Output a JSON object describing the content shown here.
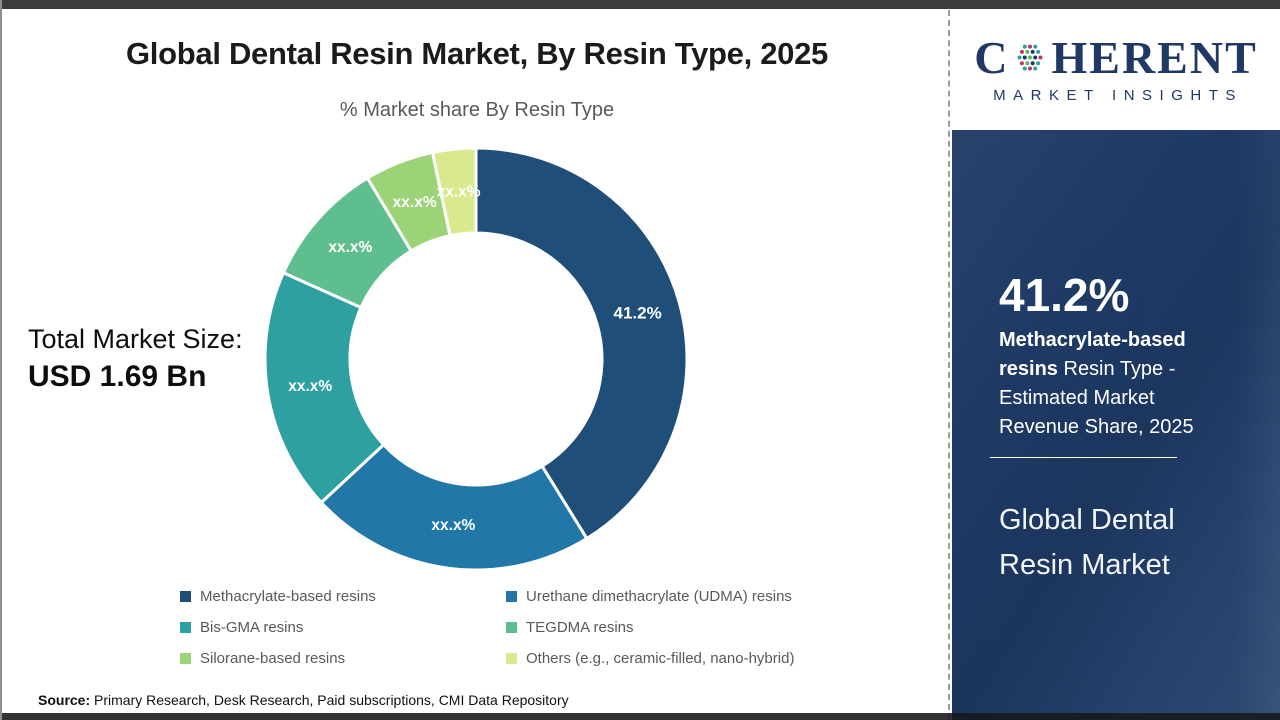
{
  "header": {
    "title": "Global Dental Resin Market, By Resin Type, 2025",
    "subtitle": "% Market share By Resin Type"
  },
  "total": {
    "label": "Total Market Size:",
    "value": "USD 1.69 Bn"
  },
  "chart_data": {
    "type": "pie",
    "variant": "donut",
    "title": "Global Dental Resin Market, By Resin Type, 2025",
    "subtitle": "% Market share By Resin Type",
    "legend_position": "bottom",
    "start_angle_deg": 0,
    "direction": "clockwise",
    "segments": [
      {
        "label": "Methacrylate-based resins",
        "display": "41.2%",
        "value": 41.2,
        "color": "#1F4E79"
      },
      {
        "label": "Urethane dimethacrylate (UDMA) resins",
        "display": "xx.x%",
        "value": 21.9,
        "color": "#2077A8"
      },
      {
        "label": "Bis-GMA resins",
        "display": "xx.x%",
        "value": 18.6,
        "color": "#2FA0A1"
      },
      {
        "label": "TEGDMA resins",
        "display": "xx.x%",
        "value": 9.7,
        "color": "#5FBE8D"
      },
      {
        "label": "Silorane-based resins",
        "display": "xx.x%",
        "value": 5.3,
        "color": "#9BD377"
      },
      {
        "label": "Others (e.g., ceramic-filled, nano-hybrid)",
        "display": "xx.x%",
        "value": 3.3,
        "color": "#D9E98E"
      }
    ]
  },
  "source": {
    "label": "Source:",
    "text": " Primary Research, Desk Research, Paid subscriptions, CMI Data Repository"
  },
  "sidebar": {
    "logo": {
      "text_c": "C",
      "text_rest": "HERENT",
      "subtext": "MARKET INSIGHTS"
    },
    "stat_value": "41.2%",
    "stat_bold": "Methacrylate-based resins",
    "stat_rest": " Resin Type - Estimated Market Revenue Share, 2025",
    "market_title": "Global Dental Resin Market"
  },
  "colors": {
    "sidebar_navy": "#1E3A66",
    "logo_navy": "#1F3864",
    "logo_dot_teal": "#2F9FA0",
    "logo_dot_green": "#5CB85C",
    "logo_dot_magenta": "#C42F6D",
    "title_text": "#1B1B1B",
    "muted_text": "#595959"
  }
}
